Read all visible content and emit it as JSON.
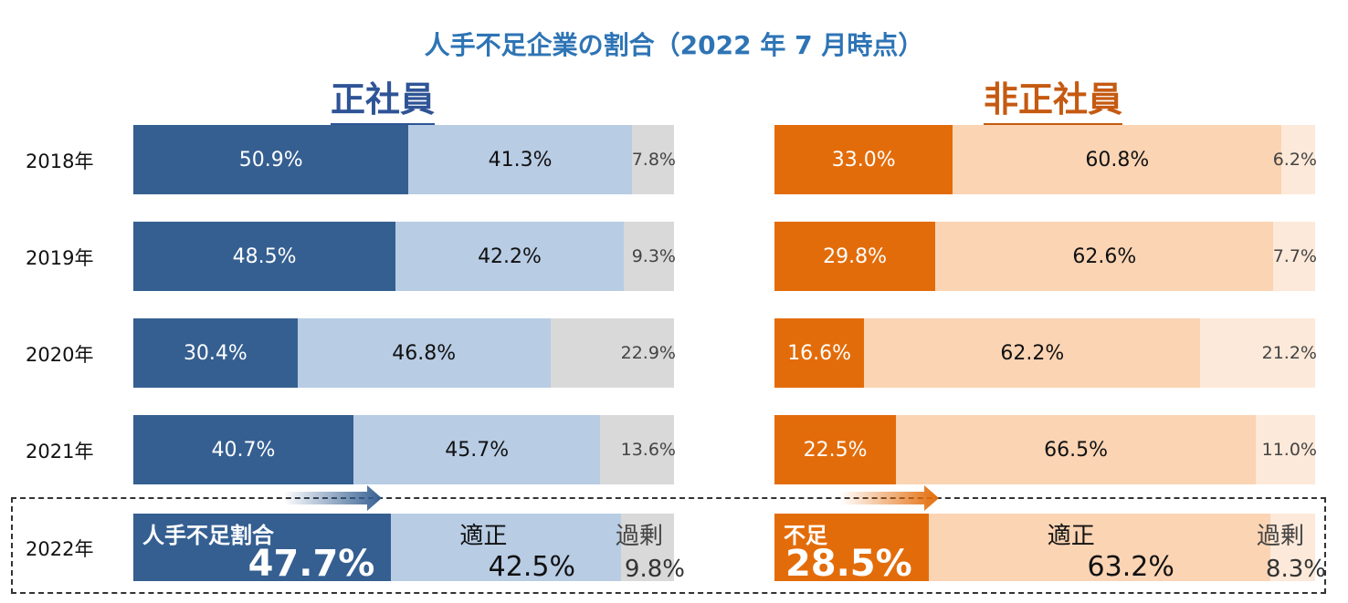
{
  "chart_data": {
    "type": "bar",
    "orientation": "horizontal-stacked-100",
    "title": "人手不足企業の割合（2022 年 7 月時点）",
    "categories": [
      "2018年",
      "2019年",
      "2020年",
      "2021年",
      "2022年"
    ],
    "panels": [
      {
        "title": "正社員",
        "colors": [
          "#355F91",
          "#B8CCE4",
          "#D9D9D9"
        ],
        "series": [
          {
            "values": [
              50.9,
              48.5,
              30.4,
              40.7,
              47.7
            ],
            "labels": [
              "50.9%",
              "48.5%",
              "30.4%",
              "40.7%",
              "47.7%"
            ]
          },
          {
            "values": [
              41.3,
              42.2,
              46.8,
              45.7,
              42.5
            ],
            "labels": [
              "41.3%",
              "42.2%",
              "46.8%",
              "45.7%",
              "42.5%"
            ]
          },
          {
            "values": [
              7.8,
              9.3,
              22.9,
              13.6,
              9.8
            ],
            "labels": [
              "7.8%",
              "9.3%",
              "22.9%",
              "13.6%",
              "9.8%"
            ]
          }
        ],
        "highlight_labels": [
          "人手不足割合",
          "適正",
          "過剰"
        ]
      },
      {
        "title": "非正社員",
        "colors": [
          "#E36C0A",
          "#FBD4B4",
          "#FDE9D9"
        ],
        "series": [
          {
            "values": [
              33.0,
              29.8,
              16.6,
              22.5,
              28.5
            ],
            "labels": [
              "33.0%",
              "29.8%",
              "16.6%",
              "22.5%",
              "28.5%"
            ]
          },
          {
            "values": [
              60.8,
              62.6,
              62.2,
              66.5,
              63.2
            ],
            "labels": [
              "60.8%",
              "62.6%",
              "62.2%",
              "66.5%",
              "63.2%"
            ]
          },
          {
            "values": [
              6.2,
              7.7,
              21.2,
              11.0,
              8.3
            ],
            "labels": [
              "6.2%",
              "7.7%",
              "21.2%",
              "11.0%",
              "8.3%"
            ]
          }
        ],
        "highlight_labels": [
          "不足",
          "適正",
          "過剰"
        ]
      }
    ],
    "grid": false,
    "legend": "none"
  }
}
